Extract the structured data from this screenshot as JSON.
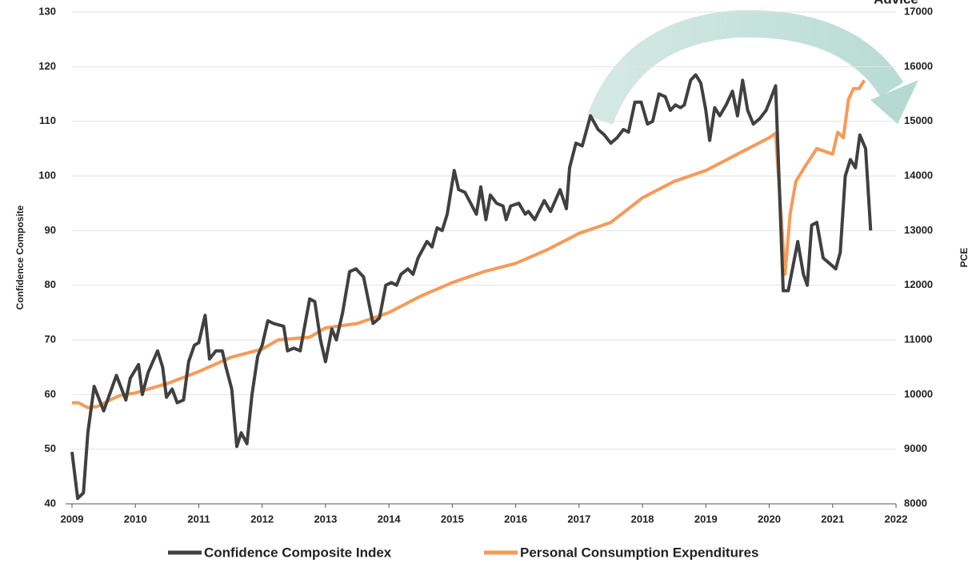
{
  "chart_data": {
    "type": "line",
    "brand": "Advice",
    "y_label": "Confidence Composite",
    "y2_label": "PCE",
    "xlim": [
      2009,
      2022
    ],
    "xticks": [
      2009,
      2010,
      2011,
      2012,
      2013,
      2014,
      2015,
      2016,
      2017,
      2018,
      2019,
      2020,
      2021,
      2022
    ],
    "ylim": [
      40,
      130
    ],
    "yticks": [
      40,
      50,
      60,
      70,
      80,
      90,
      100,
      110,
      120,
      130
    ],
    "y2lim": [
      8000,
      17000
    ],
    "y2ticks": [
      8000,
      9000,
      10000,
      11000,
      12000,
      13000,
      14000,
      15000,
      16000,
      17000
    ],
    "grid": true,
    "legend": "bottom",
    "series": [
      {
        "name": "Confidence Composite Index",
        "color": "#404040",
        "x": [
          2009.0,
          2009.09,
          2009.18,
          2009.25,
          2009.35,
          2009.5,
          2009.7,
          2009.85,
          2009.92,
          2010.05,
          2010.11,
          2010.2,
          2010.35,
          2010.43,
          2010.49,
          2010.58,
          2010.66,
          2010.76,
          2010.84,
          2010.93,
          2011.0,
          2011.1,
          2011.17,
          2011.27,
          2011.37,
          2011.43,
          2011.52,
          2011.6,
          2011.67,
          2011.76,
          2011.84,
          2011.93,
          2012.0,
          2012.09,
          2012.18,
          2012.34,
          2012.4,
          2012.5,
          2012.6,
          2012.75,
          2012.83,
          2012.92,
          2013.0,
          2013.1,
          2013.17,
          2013.27,
          2013.38,
          2013.48,
          2013.6,
          2013.75,
          2013.85,
          2013.95,
          2014.04,
          2014.12,
          2014.19,
          2014.3,
          2014.38,
          2014.46,
          2014.6,
          2014.68,
          2014.76,
          2014.84,
          2014.92,
          2015.03,
          2015.1,
          2015.2,
          2015.38,
          2015.45,
          2015.53,
          2015.6,
          2015.7,
          2015.8,
          2015.85,
          2015.92,
          2016.05,
          2016.15,
          2016.2,
          2016.3,
          2016.45,
          2016.55,
          2016.7,
          2016.8,
          2016.85,
          2016.95,
          2017.05,
          2017.18,
          2017.3,
          2017.4,
          2017.5,
          2017.6,
          2017.7,
          2017.78,
          2017.88,
          2017.98,
          2018.08,
          2018.16,
          2018.26,
          2018.36,
          2018.44,
          2018.52,
          2018.6,
          2018.66,
          2018.76,
          2018.84,
          2018.92,
          2019.0,
          2019.06,
          2019.14,
          2019.22,
          2019.32,
          2019.42,
          2019.5,
          2019.58,
          2019.66,
          2019.75,
          2019.85,
          2019.95,
          2020.02,
          2020.1,
          2020.22,
          2020.3,
          2020.45,
          2020.54,
          2020.6,
          2020.67,
          2020.75,
          2020.85,
          2020.95,
          2021.05,
          2021.12,
          2021.2,
          2021.28,
          2021.36,
          2021.43,
          2021.52,
          2021.6
        ],
        "values": [
          49.5,
          41,
          42,
          53,
          61.5,
          57,
          63.5,
          59,
          63,
          65.5,
          60,
          64,
          68,
          65,
          59.5,
          61,
          58.5,
          59,
          66,
          69,
          69.5,
          74.5,
          66.5,
          68,
          68,
          65,
          61,
          50.5,
          53,
          51,
          60,
          67,
          69,
          73.5,
          73,
          72.5,
          68,
          68.5,
          68,
          77.5,
          77,
          70,
          66,
          72,
          70,
          75,
          82.5,
          83,
          81.5,
          73,
          74,
          80,
          80.5,
          80,
          82,
          83,
          82,
          85,
          88,
          87,
          90.5,
          90,
          93,
          101,
          97.5,
          97,
          93,
          98,
          92,
          96.5,
          95,
          94.5,
          92,
          94.5,
          95,
          93,
          93.5,
          92,
          95.5,
          93.5,
          97.5,
          94,
          101.5,
          106,
          105.5,
          111,
          108.5,
          107.5,
          106,
          107,
          108.5,
          108,
          113.5,
          113.5,
          109.5,
          110,
          115,
          114.5,
          112,
          113,
          112.5,
          113,
          117.5,
          118.5,
          117,
          112,
          106.5,
          112.5,
          111,
          113,
          115.5,
          111,
          117.5,
          112,
          109.5,
          110.5,
          112,
          114,
          116.5,
          79,
          79,
          88,
          82,
          80,
          91,
          91.5,
          85,
          84,
          83,
          86,
          100,
          103,
          101.5,
          107.5,
          105,
          90
        ]
      },
      {
        "name": "Personal Consumption Expenditures",
        "color": "#f79a57",
        "axis": "y2",
        "x": [
          2009.0,
          2009.1,
          2009.25,
          2009.4,
          2009.6,
          2009.75,
          2010.0,
          2010.5,
          2011.0,
          2011.5,
          2012.0,
          2012.25,
          2012.75,
          2013.0,
          2013.5,
          2014.0,
          2014.5,
          2015.0,
          2015.5,
          2016.0,
          2016.5,
          2017.0,
          2017.5,
          2018.0,
          2018.5,
          2019.0,
          2019.5,
          2020.0,
          2020.1,
          2020.25,
          2020.33,
          2020.42,
          2020.58,
          2020.75,
          2021.0,
          2021.08,
          2021.17,
          2021.25,
          2021.33,
          2021.42,
          2021.5
        ],
        "values": [
          9850,
          9850,
          9760,
          9780,
          9900,
          9980,
          10030,
          10200,
          10420,
          10680,
          10830,
          11000,
          11050,
          11220,
          11300,
          11500,
          11800,
          12050,
          12250,
          12400,
          12650,
          12950,
          13150,
          13600,
          13900,
          14100,
          14400,
          14700,
          14780,
          12200,
          13300,
          13900,
          14200,
          14500,
          14400,
          14800,
          14700,
          15400,
          15600,
          15600,
          15750
        ]
      }
    ]
  }
}
